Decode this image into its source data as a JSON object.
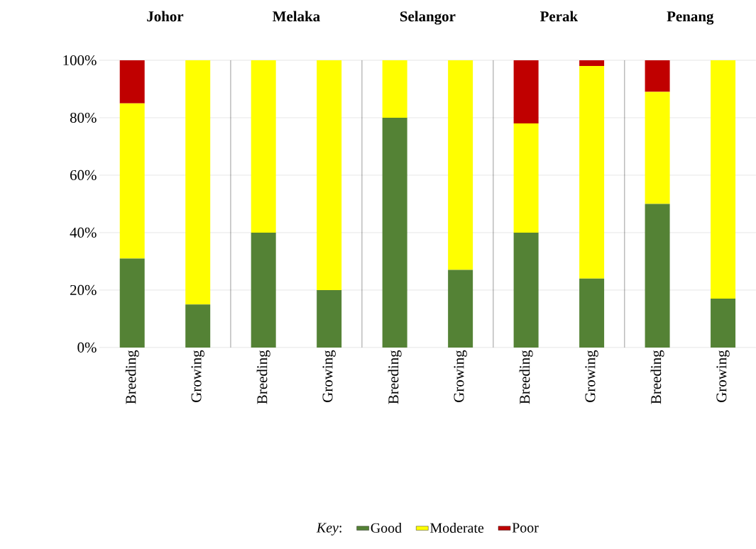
{
  "chart_data": {
    "type": "bar",
    "stacked": true,
    "categories": [
      "Breeding",
      "Growing",
      "Breeding",
      "Growing",
      "Breeding",
      "Growing",
      "Breeding",
      "Growing",
      "Breeding",
      "Growing"
    ],
    "series": [
      {
        "name": "Good",
        "color": "#548235",
        "values": [
          31,
          15,
          40,
          20,
          80,
          27,
          40,
          24,
          50,
          17
        ]
      },
      {
        "name": "Moderate",
        "color": "#ffff00",
        "values": [
          54,
          85,
          60,
          80,
          20,
          73,
          38,
          74,
          39,
          83
        ]
      },
      {
        "name": "Poor",
        "color": "#c00000",
        "values": [
          15,
          0,
          0,
          0,
          0,
          0,
          22,
          2,
          11,
          0
        ]
      }
    ],
    "ylim": [
      0,
      100
    ],
    "yticks": [
      {
        "value": 0,
        "label": "0%"
      },
      {
        "value": 20,
        "label": "20%"
      },
      {
        "value": 40,
        "label": "40%"
      },
      {
        "value": 60,
        "label": "60%"
      },
      {
        "value": 80,
        "label": "80%"
      },
      {
        "value": 100,
        "label": "100%"
      }
    ],
    "annotations": [
      "Johor",
      "Melaka",
      "Selangor",
      "Perak",
      "Penang"
    ],
    "legend_title": "*Key*:",
    "legend": "bottom",
    "grid": "y"
  }
}
